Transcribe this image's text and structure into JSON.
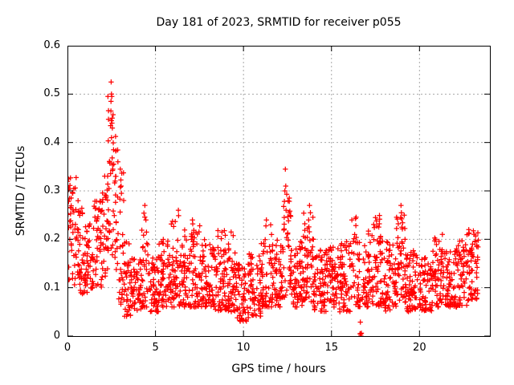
{
  "chart_data": {
    "type": "scatter",
    "title": "Day 181 of 2023, SRMTID for receiver p055",
    "xlabel": "GPS time / hours",
    "ylabel": "SRMTID / TECUs",
    "xlim": [
      0,
      24
    ],
    "ylim": [
      0,
      0.6
    ],
    "xticks": [
      0,
      5,
      10,
      15,
      20
    ],
    "xtick_labels": [
      "0",
      "5",
      "10",
      "15",
      "20"
    ],
    "yticks": [
      0,
      0.1,
      0.2,
      0.3,
      0.4,
      0.5,
      0.6
    ],
    "ytick_labels": [
      "0",
      "0.1",
      "0.2",
      "0.3",
      "0.4",
      "0.5",
      "0.6"
    ],
    "grid": true,
    "legend": "none",
    "marker": "plus",
    "marker_color": "#ff0000",
    "grid_color": "#a8a8a8",
    "border_color": "#000000",
    "background_color": "#ffffff",
    "notable_points": [
      [
        0.05,
        0.325
      ],
      [
        0.08,
        0.305
      ],
      [
        0.3,
        0.295
      ],
      [
        2.48,
        0.525
      ],
      [
        2.5,
        0.5
      ],
      [
        2.52,
        0.495
      ],
      [
        2.47,
        0.465
      ],
      [
        2.5,
        0.445
      ],
      [
        2.53,
        0.44
      ],
      [
        2.45,
        0.435
      ],
      [
        2.55,
        0.43
      ],
      [
        2.5,
        0.41
      ],
      [
        2.62,
        0.385
      ],
      [
        2.4,
        0.36
      ],
      [
        2.58,
        0.345
      ],
      [
        2.75,
        0.33
      ],
      [
        3.0,
        0.345
      ],
      [
        3.05,
        0.31
      ],
      [
        4.4,
        0.27
      ],
      [
        6.3,
        0.26
      ],
      [
        7.1,
        0.24
      ],
      [
        9.3,
        0.215
      ],
      [
        11.3,
        0.24
      ],
      [
        12.38,
        0.345
      ],
      [
        12.4,
        0.31
      ],
      [
        12.35,
        0.3
      ],
      [
        12.42,
        0.26
      ],
      [
        13.75,
        0.27
      ],
      [
        13.8,
        0.255
      ],
      [
        13.7,
        0.24
      ],
      [
        16.62,
        0.005
      ],
      [
        16.66,
        0.004
      ],
      [
        16.7,
        0.006
      ],
      [
        17.5,
        0.245
      ],
      [
        18.95,
        0.27
      ],
      [
        18.97,
        0.255
      ],
      [
        18.93,
        0.245
      ],
      [
        19.0,
        0.225
      ],
      [
        21.3,
        0.21
      ],
      [
        23.1,
        0.21
      ],
      [
        23.15,
        0.195
      ],
      [
        23.25,
        0.185
      ]
    ],
    "noise_bands_format": [
      "t_start_hours",
      "t_end_hours",
      "y_min_tecus",
      "y_max_tecus",
      "point_count",
      "low_bias_exponent"
    ],
    "noise_bands": [
      [
        0.0,
        0.5,
        0.1,
        0.33,
        45,
        1.0
      ],
      [
        0.5,
        1.0,
        0.08,
        0.28,
        45,
        1.2
      ],
      [
        1.0,
        1.5,
        0.09,
        0.24,
        45,
        1.2
      ],
      [
        1.5,
        2.0,
        0.1,
        0.3,
        45,
        1.0
      ],
      [
        2.0,
        2.3,
        0.12,
        0.34,
        27,
        0.9
      ],
      [
        2.3,
        2.6,
        0.15,
        0.5,
        27,
        1.0
      ],
      [
        2.6,
        2.9,
        0.12,
        0.44,
        27,
        1.3
      ],
      [
        2.9,
        3.2,
        0.06,
        0.35,
        27,
        1.5
      ],
      [
        3.2,
        3.6,
        0.04,
        0.2,
        36,
        1.3
      ],
      [
        3.6,
        4.2,
        0.05,
        0.16,
        54,
        1.2
      ],
      [
        4.2,
        4.6,
        0.06,
        0.26,
        36,
        1.6
      ],
      [
        4.6,
        5.2,
        0.05,
        0.17,
        54,
        1.2
      ],
      [
        5.2,
        5.8,
        0.06,
        0.2,
        54,
        1.3
      ],
      [
        5.8,
        6.4,
        0.06,
        0.25,
        54,
        1.5
      ],
      [
        6.4,
        7.0,
        0.06,
        0.22,
        54,
        1.4
      ],
      [
        7.0,
        7.6,
        0.06,
        0.24,
        54,
        1.5
      ],
      [
        7.6,
        8.4,
        0.06,
        0.2,
        72,
        1.4
      ],
      [
        8.4,
        9.0,
        0.05,
        0.22,
        54,
        1.4
      ],
      [
        9.0,
        9.6,
        0.05,
        0.21,
        54,
        1.4
      ],
      [
        9.6,
        10.3,
        0.03,
        0.15,
        63,
        1.2
      ],
      [
        10.3,
        11.0,
        0.04,
        0.17,
        63,
        1.3
      ],
      [
        11.0,
        11.6,
        0.06,
        0.24,
        54,
        1.5
      ],
      [
        11.6,
        12.2,
        0.06,
        0.2,
        54,
        1.3
      ],
      [
        12.2,
        12.7,
        0.08,
        0.3,
        45,
        1.5
      ],
      [
        12.7,
        13.4,
        0.06,
        0.2,
        63,
        1.3
      ],
      [
        13.4,
        14.0,
        0.07,
        0.27,
        54,
        1.3
      ],
      [
        14.0,
        14.7,
        0.05,
        0.18,
        63,
        1.3
      ],
      [
        14.7,
        15.4,
        0.06,
        0.19,
        63,
        1.3
      ],
      [
        15.4,
        16.1,
        0.05,
        0.2,
        63,
        1.3
      ],
      [
        16.1,
        16.6,
        0.06,
        0.25,
        40,
        1.4
      ],
      [
        16.6,
        16.8,
        0.0,
        0.08,
        8,
        1.0
      ],
      [
        16.8,
        17.4,
        0.06,
        0.22,
        54,
        1.4
      ],
      [
        17.4,
        18.0,
        0.06,
        0.25,
        54,
        1.4
      ],
      [
        18.0,
        18.7,
        0.05,
        0.2,
        63,
        1.3
      ],
      [
        18.7,
        19.2,
        0.07,
        0.26,
        45,
        1.2
      ],
      [
        19.2,
        20.0,
        0.05,
        0.18,
        72,
        1.3
      ],
      [
        20.0,
        20.7,
        0.05,
        0.17,
        63,
        1.3
      ],
      [
        20.7,
        21.4,
        0.06,
        0.21,
        63,
        1.3
      ],
      [
        21.4,
        22.1,
        0.06,
        0.18,
        63,
        1.3
      ],
      [
        22.1,
        22.7,
        0.06,
        0.2,
        54,
        1.3
      ],
      [
        22.7,
        23.35,
        0.07,
        0.22,
        58,
        1.1
      ]
    ]
  }
}
